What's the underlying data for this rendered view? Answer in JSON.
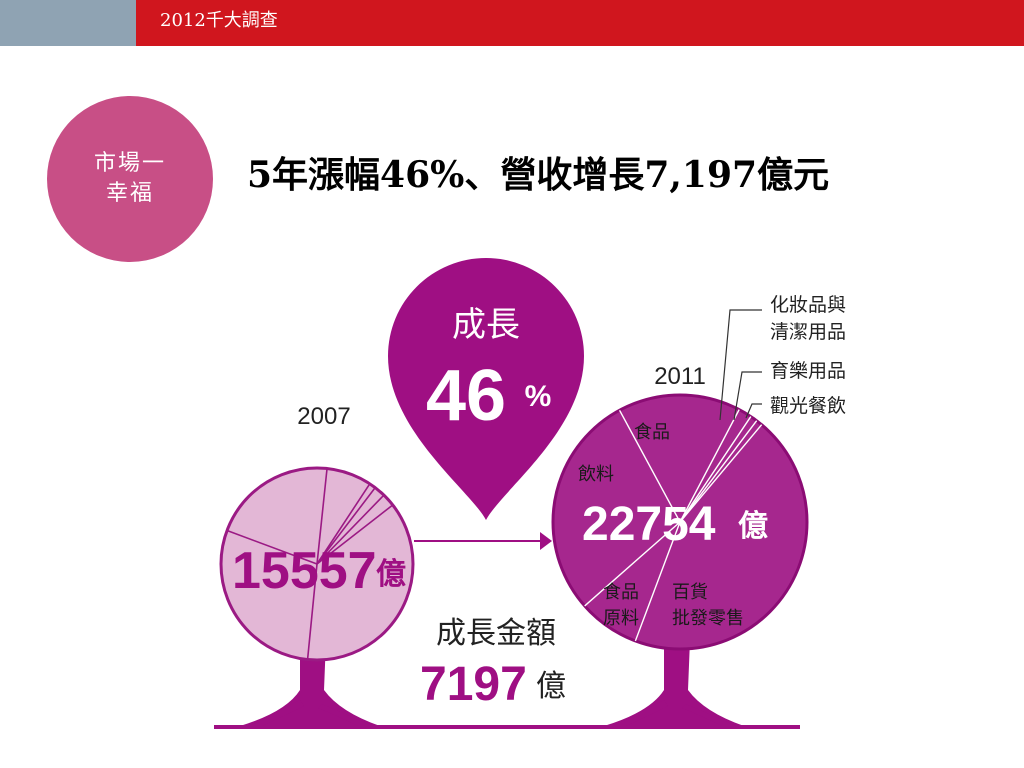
{
  "header": {
    "title": "2012千大調查"
  },
  "badge": {
    "line1": "市場一",
    "line2": "幸福"
  },
  "headline": "5年漲幅46%、營收增長7,197億元",
  "chart_data": [
    {
      "type": "pie",
      "year": "2007",
      "total": 15557,
      "total_label": "15557",
      "unit": "億",
      "colors": {
        "fill": "#e3b7d6",
        "stroke": "#9b1a84"
      },
      "slices": [
        {
          "name": "",
          "value": 7.6
        },
        {
          "name": "",
          "value": 1.1
        },
        {
          "name": "",
          "value": 1.9
        },
        {
          "name": "",
          "value": 2.2
        },
        {
          "name": "",
          "value": 37.1
        },
        {
          "name": "",
          "value": 29.1
        },
        {
          "name": "",
          "value": 21.0
        }
      ]
    },
    {
      "type": "pie",
      "year": "2011",
      "total": 22754,
      "total_label": "22754",
      "unit": "億",
      "colors": {
        "fill": "#a6278e",
        "stroke": "#ffffff"
      },
      "slices": [
        {
          "name": "百貨批發零售",
          "value": 44.6
        },
        {
          "name": "食品原料",
          "value": 7.8
        },
        {
          "name": "飲料",
          "value": 28.6
        },
        {
          "name": "食品",
          "value": 15.6
        },
        {
          "name": "化妝品與清潔用品",
          "value": 1.7
        },
        {
          "name": "育樂用品",
          "value": 0.9
        },
        {
          "name": "觀光餐飲",
          "value": 0.8
        }
      ],
      "labels": {
        "cosmetics_line1": "化妝品與",
        "cosmetics_line2": "清潔用品",
        "recreation": "育樂用品",
        "tourism": "觀光餐飲",
        "food": "食品",
        "beverage": "飲料",
        "food_raw_line1": "食品",
        "food_raw_line2": "原料",
        "retail_line1": "百貨",
        "retail_line2": "批發零售"
      }
    }
  ],
  "growth_pin": {
    "label": "成長",
    "value": "46",
    "unit": "%",
    "color": "#9f0f83"
  },
  "growth_amount": {
    "label": "成長金額",
    "value": "7197",
    "unit": "億"
  }
}
